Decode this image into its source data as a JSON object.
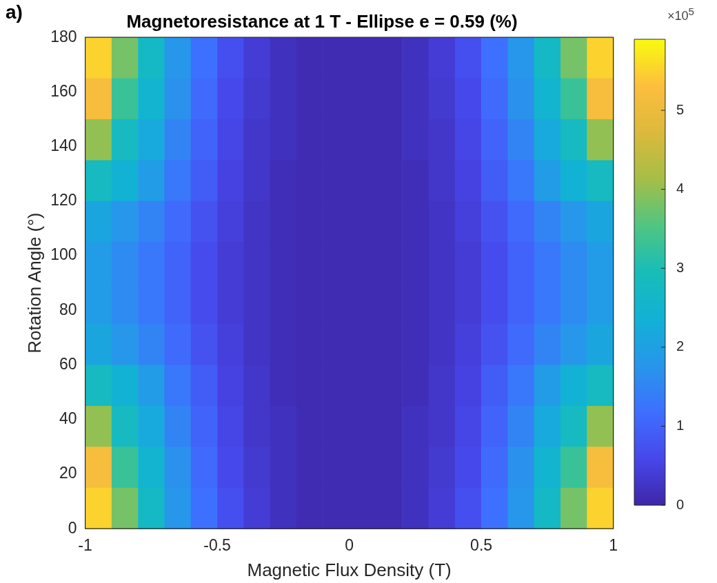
{
  "chart_data": {
    "type": "heatmap",
    "title": "Magnetoresistance at 1 T - Ellipse e = 0.59 (%)",
    "xlabel": "Magnetic Flux Density (T)",
    "ylabel": "Rotation Angle (°)",
    "xlim": [
      -1,
      1
    ],
    "xticks": [
      -1,
      -0.5,
      0,
      0.5,
      1
    ],
    "ylim": [
      0,
      180
    ],
    "yticks": [
      0,
      20,
      40,
      60,
      80,
      100,
      120,
      140,
      160,
      180
    ],
    "clim": [
      0,
      5.9
    ],
    "cticks": [
      0,
      1,
      2,
      3,
      4,
      5
    ],
    "annotations": [
      "a)",
      "×10$^{5}$"
    ],
    "cells": [
      [
        5.5,
        3.8,
        2.7,
        1.8,
        1.2,
        0.7,
        0.4,
        0.2,
        0.1,
        0.1,
        0.1,
        0.1,
        0.2,
        0.4,
        0.7,
        1.2,
        1.8,
        2.7,
        3.8,
        5.5
      ],
      [
        5.2,
        3.3,
        2.5,
        1.7,
        1.1,
        0.6,
        0.35,
        0.2,
        0.1,
        0.1,
        0.1,
        0.1,
        0.2,
        0.35,
        0.6,
        1.1,
        1.7,
        2.5,
        3.3,
        5.2
      ],
      [
        4.0,
        2.8,
        2.2,
        1.5,
        1.0,
        0.55,
        0.3,
        0.2,
        0.1,
        0.1,
        0.1,
        0.1,
        0.2,
        0.3,
        0.55,
        1.0,
        1.5,
        2.2,
        2.8,
        4.0
      ],
      [
        2.8,
        2.4,
        1.9,
        1.3,
        0.9,
        0.5,
        0.3,
        0.15,
        0.1,
        0.1,
        0.1,
        0.1,
        0.15,
        0.3,
        0.5,
        0.9,
        1.3,
        1.9,
        2.4,
        2.8
      ],
      [
        2.1,
        1.8,
        1.5,
        1.1,
        0.75,
        0.45,
        0.25,
        0.15,
        0.1,
        0.1,
        0.1,
        0.1,
        0.15,
        0.25,
        0.45,
        0.75,
        1.1,
        1.5,
        1.8,
        2.1
      ],
      [
        1.9,
        1.6,
        1.3,
        1.0,
        0.65,
        0.4,
        0.25,
        0.15,
        0.1,
        0.1,
        0.1,
        0.1,
        0.15,
        0.25,
        0.4,
        0.65,
        1.0,
        1.3,
        1.6,
        1.9
      ],
      [
        1.9,
        1.6,
        1.3,
        1.0,
        0.65,
        0.4,
        0.25,
        0.15,
        0.1,
        0.1,
        0.1,
        0.1,
        0.15,
        0.25,
        0.4,
        0.65,
        1.0,
        1.3,
        1.6,
        1.9
      ],
      [
        2.1,
        1.8,
        1.5,
        1.1,
        0.75,
        0.45,
        0.25,
        0.15,
        0.1,
        0.1,
        0.1,
        0.1,
        0.15,
        0.25,
        0.45,
        0.75,
        1.1,
        1.5,
        1.8,
        2.1
      ],
      [
        2.8,
        2.4,
        1.9,
        1.3,
        0.9,
        0.5,
        0.3,
        0.15,
        0.1,
        0.1,
        0.1,
        0.1,
        0.15,
        0.3,
        0.5,
        0.9,
        1.3,
        1.9,
        2.4,
        2.8
      ],
      [
        4.0,
        2.8,
        2.2,
        1.5,
        1.0,
        0.55,
        0.3,
        0.2,
        0.1,
        0.1,
        0.1,
        0.1,
        0.2,
        0.3,
        0.55,
        1.0,
        1.5,
        2.2,
        2.8,
        4.0
      ],
      [
        5.2,
        3.3,
        2.5,
        1.7,
        1.1,
        0.6,
        0.35,
        0.2,
        0.1,
        0.1,
        0.1,
        0.1,
        0.2,
        0.35,
        0.6,
        1.1,
        1.7,
        2.5,
        3.3,
        5.2
      ],
      [
        5.5,
        3.8,
        2.7,
        1.8,
        1.2,
        0.7,
        0.4,
        0.2,
        0.1,
        0.1,
        0.1,
        0.1,
        0.2,
        0.4,
        0.7,
        1.2,
        1.8,
        2.7,
        3.8,
        5.5
      ]
    ]
  }
}
